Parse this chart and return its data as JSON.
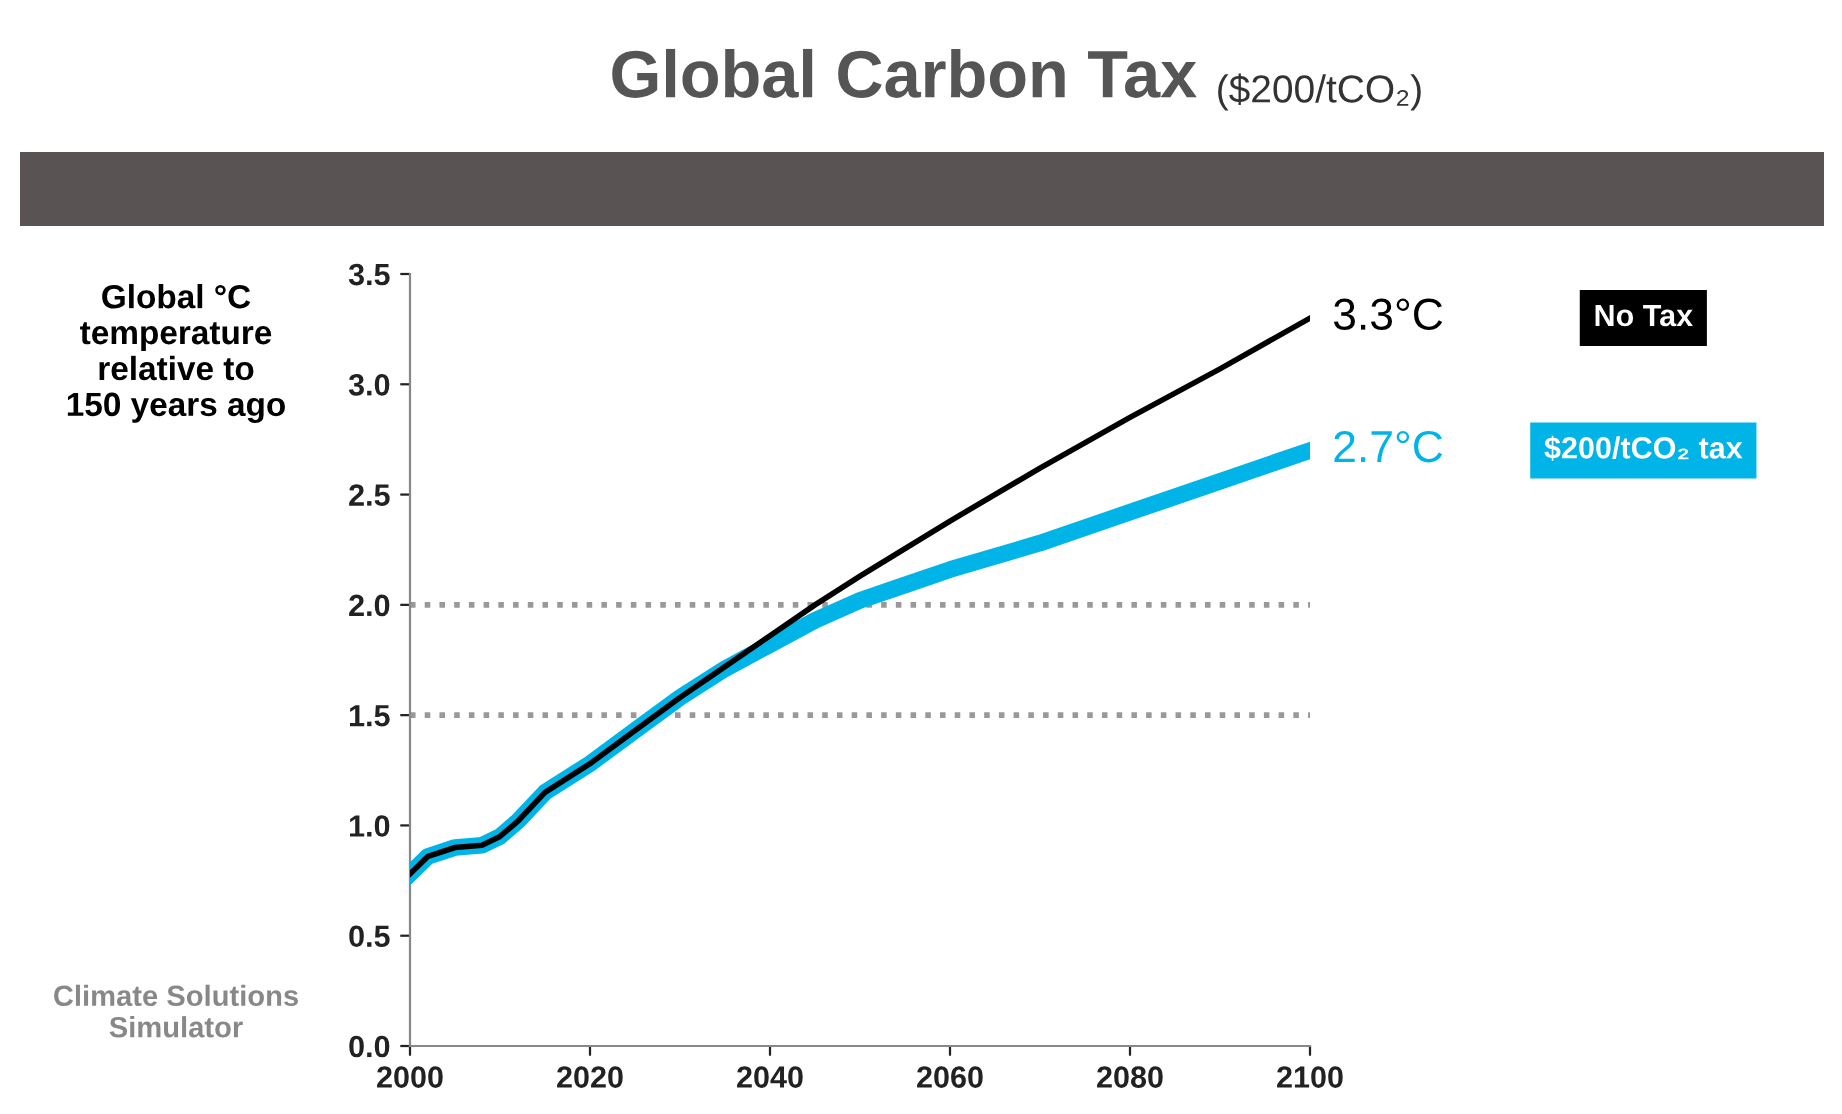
{
  "chart_data": {
    "type": "line",
    "title": "Global Carbon Tax",
    "subtitle": "($200/tCO₂)",
    "ylabel": "Global °C\ntemperature\nrelative to\n150 years ago",
    "series": [
      {
        "name": "$200/tCO₂ tax",
        "color": "#00b4e8",
        "x": [
          2000,
          2002,
          2005,
          2008,
          2010,
          2012,
          2015,
          2020,
          2025,
          2030,
          2035,
          2040,
          2045,
          2050,
          2055,
          2060,
          2070,
          2080,
          2090,
          2100
        ],
        "values": [
          0.78,
          0.86,
          0.9,
          0.91,
          0.95,
          1.02,
          1.15,
          1.28,
          1.43,
          1.58,
          1.71,
          1.82,
          1.93,
          2.02,
          2.09,
          2.16,
          2.28,
          2.42,
          2.56,
          2.7
        ]
      },
      {
        "name": "No Tax",
        "color": "#000000",
        "x": [
          2000,
          2002,
          2005,
          2008,
          2010,
          2012,
          2015,
          2020,
          2025,
          2030,
          2035,
          2040,
          2045,
          2050,
          2060,
          2070,
          2080,
          2090,
          2100
        ],
        "values": [
          0.78,
          0.86,
          0.9,
          0.91,
          0.95,
          1.02,
          1.15,
          1.28,
          1.43,
          1.58,
          1.72,
          1.86,
          2.0,
          2.13,
          2.38,
          2.62,
          2.85,
          3.07,
          3.3
        ]
      }
    ],
    "annotations": [
      {
        "text": "2.7°C",
        "x": 2100,
        "y": 2.7
      },
      {
        "text": "3.3°C",
        "x": 2100,
        "y": 3.3
      },
      "Climate Solutions\nSimulator"
    ],
    "xlim": [
      2000,
      2100
    ],
    "xticks": [
      2000,
      2020,
      2040,
      2060,
      2080,
      2100
    ],
    "ylim": [
      0,
      3.5
    ],
    "yticks": [
      {
        "value": 0,
        "label": "0.0"
      },
      0.5,
      {
        "value": 1,
        "label": "1.0"
      },
      1.5,
      {
        "value": 2,
        "label": "2.0"
      },
      2.5,
      {
        "value": 3,
        "label": "3.0"
      },
      3.5
    ],
    "ref_lines": [
      {
        "axis": "y",
        "value": 1.5,
        "color": "#999999",
        "line_style": "dotted"
      },
      {
        "axis": "y",
        "value": 2.0,
        "color": "#999999",
        "line_style": "dotted"
      }
    ],
    "grid": false,
    "marker": "none",
    "line_style": "solid"
  }
}
